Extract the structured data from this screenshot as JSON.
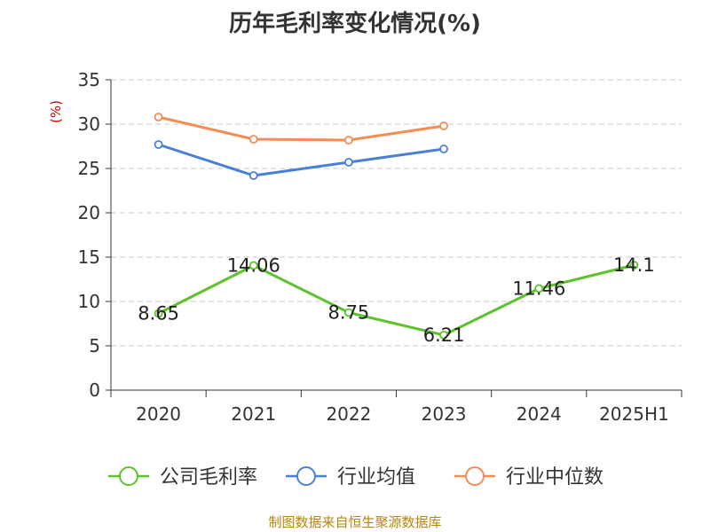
{
  "chart_data": {
    "type": "line",
    "title": "历年毛利率变化情况(%)",
    "ylabel": "(%)",
    "xlabel": "",
    "categories": [
      "2020",
      "2021",
      "2022",
      "2023",
      "2024",
      "2025H1"
    ],
    "ylim": [
      0,
      35
    ],
    "yticks": [
      0,
      5,
      10,
      15,
      20,
      25,
      30,
      35
    ],
    "grid": true,
    "legend_position": "bottom",
    "series": [
      {
        "name": "公司毛利率",
        "color": "#5ec22b",
        "values": [
          8.65,
          14.06,
          8.75,
          6.21,
          11.46,
          14.1
        ],
        "labels": [
          "8.65",
          "14.06",
          "8.75",
          "6.21",
          "11.46",
          "14.1"
        ]
      },
      {
        "name": "行业均值",
        "color": "#4a7fd8",
        "values": [
          27.7,
          24.2,
          25.7,
          27.2,
          null,
          null
        ]
      },
      {
        "name": "行业中位数",
        "color": "#f58c54",
        "values": [
          30.8,
          28.3,
          28.2,
          29.8,
          null,
          null
        ]
      }
    ]
  },
  "footer": {
    "source": "制图数据来自恒生聚源数据库"
  }
}
